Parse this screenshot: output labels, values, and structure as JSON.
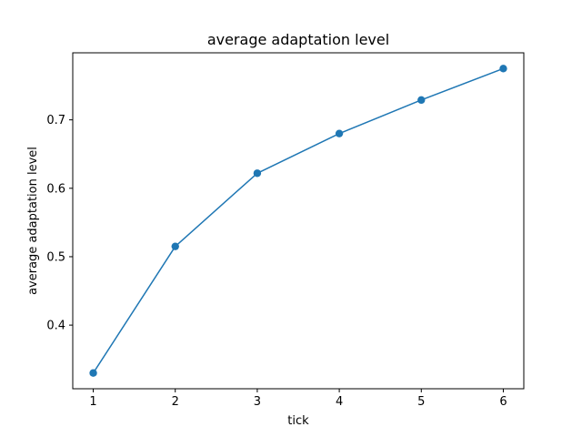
{
  "chart_data": {
    "type": "line",
    "title": "average adaptation level",
    "xlabel": "tick",
    "ylabel": "average adaptation level",
    "x": [
      1,
      2,
      3,
      4,
      5,
      6
    ],
    "series": [
      {
        "values": [
          0.33,
          0.515,
          0.622,
          0.68,
          0.729,
          0.775
        ],
        "color": "#1f77b4",
        "marker": "circle"
      }
    ],
    "xlim": [
      0.75,
      6.25
    ],
    "ylim": [
      0.307,
      0.798
    ],
    "xticks": [
      1,
      2,
      3,
      4,
      5,
      6
    ],
    "yticks": [
      0.4,
      0.5,
      0.6,
      0.7
    ],
    "xtick_labels": [
      "1",
      "2",
      "3",
      "4",
      "5",
      "6"
    ],
    "ytick_labels": [
      "0.4",
      "0.5",
      "0.6",
      "0.7"
    ],
    "grid": false,
    "legend": "none"
  }
}
